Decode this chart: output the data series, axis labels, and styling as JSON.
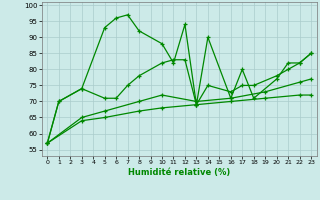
{
  "xlabel": "Humidité relative (%)",
  "xlim": [
    -0.5,
    23.5
  ],
  "ylim": [
    53,
    101
  ],
  "yticks": [
    55,
    60,
    65,
    70,
    75,
    80,
    85,
    90,
    95,
    100
  ],
  "xticks": [
    0,
    1,
    2,
    3,
    4,
    5,
    6,
    7,
    8,
    9,
    10,
    11,
    12,
    13,
    14,
    15,
    16,
    17,
    18,
    19,
    20,
    21,
    22,
    23
  ],
  "background_color": "#cceae8",
  "grid_color": "#aacccc",
  "line_color": "#008800",
  "series": [
    {
      "x": [
        0,
        1,
        3,
        5,
        6,
        7,
        8,
        10,
        11,
        12,
        13,
        14,
        16,
        17,
        18,
        20,
        21,
        22,
        23
      ],
      "y": [
        57,
        70,
        74,
        93,
        96,
        97,
        92,
        88,
        82,
        94,
        69,
        90,
        71,
        80,
        71,
        77,
        82,
        82,
        85
      ]
    },
    {
      "x": [
        0,
        1,
        3,
        5,
        6,
        7,
        8,
        10,
        11,
        12,
        13,
        14,
        16,
        17,
        18,
        20,
        21,
        22,
        23
      ],
      "y": [
        57,
        70,
        74,
        71,
        71,
        75,
        78,
        82,
        83,
        83,
        69,
        75,
        73,
        75,
        75,
        78,
        80,
        82,
        85
      ]
    },
    {
      "x": [
        0,
        3,
        5,
        8,
        10,
        13,
        16,
        19,
        22,
        23
      ],
      "y": [
        57,
        65,
        67,
        70,
        72,
        70,
        71,
        73,
        76,
        77
      ]
    },
    {
      "x": [
        0,
        3,
        5,
        8,
        10,
        13,
        16,
        19,
        22,
        23
      ],
      "y": [
        57,
        64,
        65,
        67,
        68,
        69,
        70,
        71,
        72,
        72
      ]
    }
  ]
}
